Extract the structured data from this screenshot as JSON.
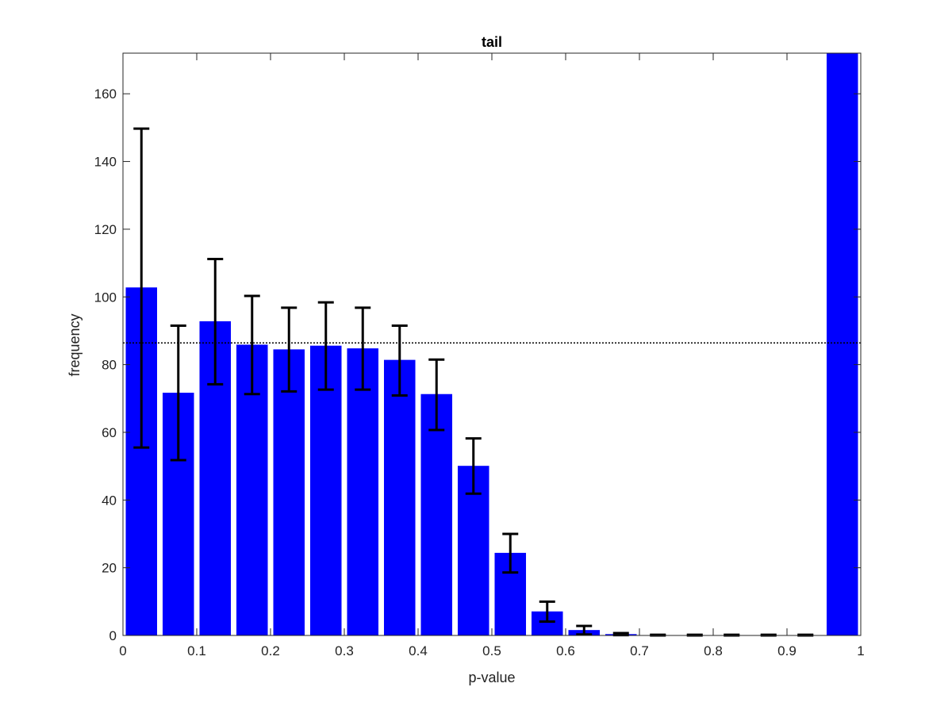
{
  "chart_data": {
    "type": "bar",
    "title": "tail",
    "xlabel": "p-value",
    "ylabel": "frequency",
    "xlim": [
      0,
      1
    ],
    "ylim": [
      0,
      172
    ],
    "xticks": [
      0,
      0.1,
      0.2,
      0.3,
      0.4,
      0.5,
      0.6,
      0.7,
      0.8,
      0.9,
      1
    ],
    "xtick_labels": [
      "0",
      "0.1",
      "0.2",
      "0.3",
      "0.4",
      "0.5",
      "0.6",
      "0.7",
      "0.8",
      "0.9",
      "1"
    ],
    "yticks": [
      0,
      20,
      40,
      60,
      80,
      100,
      120,
      140,
      160
    ],
    "ytick_labels": [
      "0",
      "20",
      "40",
      "60",
      "80",
      "100",
      "120",
      "140",
      "160"
    ],
    "grid": false,
    "bar_color": "#0000ff",
    "errorbar_color": "#000000",
    "x": [
      0.025,
      0.075,
      0.125,
      0.175,
      0.225,
      0.275,
      0.325,
      0.375,
      0.425,
      0.475,
      0.525,
      0.575,
      0.625,
      0.675,
      0.725,
      0.775,
      0.825,
      0.875,
      0.925,
      0.975
    ],
    "values": [
      102.8,
      71.7,
      92.8,
      85.9,
      84.5,
      85.6,
      84.8,
      81.4,
      71.3,
      50.1,
      24.4,
      7.1,
      1.6,
      0.4,
      0.1,
      0.1,
      0.1,
      0.1,
      0.1,
      172
    ],
    "error_low": [
      55.5,
      51.8,
      74.2,
      71.3,
      72.1,
      72.6,
      72.6,
      70.9,
      60.7,
      41.9,
      18.6,
      4.1,
      0.3,
      0.1,
      0,
      0,
      0,
      0,
      0,
      null
    ],
    "error_high": [
      149.7,
      91.5,
      111.2,
      100.3,
      96.8,
      98.4,
      96.8,
      91.5,
      81.5,
      58.2,
      30,
      10,
      2.8,
      0.7,
      0.2,
      0.2,
      0.2,
      0.2,
      0.2,
      null
    ],
    "reference_line": {
      "y": 86.4,
      "style": "dotted"
    }
  }
}
